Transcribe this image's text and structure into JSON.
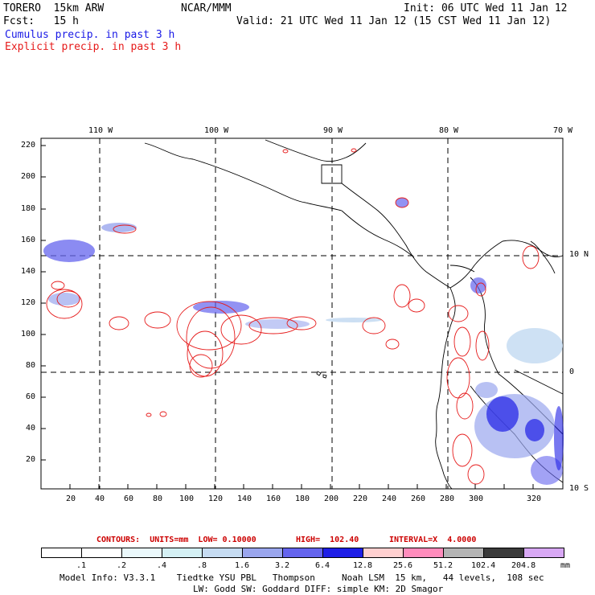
{
  "header": {
    "model": "TORERO  15km ARW",
    "center": "NCAR/MMM",
    "init": "Init: 06 UTC Wed 11 Jan 12",
    "fcst": "Fcst:   15 h",
    "valid": "Valid: 21 UTC Wed 11 Jan 12 (15 CST Wed 11 Jan 12)",
    "cumulus": "Cumulus precip. in past 3 h",
    "explicit": "Explicit precip. in past 3 h"
  },
  "axes": {
    "lon_labels": [
      "110 W",
      "100 W",
      "90 W",
      "80 W",
      "70 W"
    ],
    "lat_labels": [
      "10 N",
      "0",
      "10 S"
    ],
    "x_ticks": [
      "20",
      "40",
      "60",
      "80",
      "100",
      "120",
      "140",
      "160",
      "180",
      "200",
      "220",
      "240",
      "260",
      "280",
      "300",
      "320"
    ],
    "y_ticks": [
      "220",
      "200",
      "180",
      "160",
      "140",
      "120",
      "100",
      "80",
      "60",
      "40",
      "20"
    ]
  },
  "contour_info": {
    "contours": "CONTOURS:  UNITS=mm  LOW= 0.10000",
    "high": "HIGH=  102.40",
    "interval": "INTERVAL=X  4.0000"
  },
  "colorbar": {
    "unit": "mm",
    "labels": [
      ".1",
      ".2",
      ".4",
      ".8",
      "1.6",
      "3.2",
      "6.4",
      "12.8",
      "25.6",
      "51.2",
      "102.4",
      "204.8"
    ],
    "colors": [
      "#ffffff",
      "#ffffff",
      "#eaf8fb",
      "#d4f0f4",
      "#c6dcf2",
      "#9aa6ee",
      "#6464ee",
      "#1e1ee6",
      "#ffd0d0",
      "#ff8cbc",
      "#b4b4b4",
      "#3a3a3a",
      "#d8a8f4"
    ]
  },
  "footer": {
    "line1": "Model Info: V3.3.1    Tiedtke YSU PBL   Thompson     Noah LSM  15 km,   44 levels,  108 sec",
    "line2": "LW: Godd SW: Goddard DIFF: simple KM: 2D Smagor"
  }
}
